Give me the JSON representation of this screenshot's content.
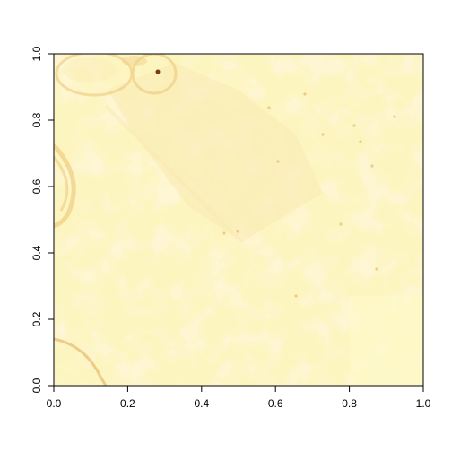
{
  "chart_data": {
    "type": "heatmap",
    "title": "",
    "xlabel": "",
    "ylabel": "",
    "xlim": [
      0,
      1
    ],
    "ylim": [
      0,
      1
    ],
    "x_ticks": [
      "0.0",
      "0.2",
      "0.4",
      "0.6",
      "0.8",
      "1.0"
    ],
    "y_ticks": [
      "0.0",
      "0.2",
      "0.4",
      "0.6",
      "0.8",
      "1.0"
    ],
    "grid": false,
    "legend": "none",
    "colors": {
      "base": "#fdf5c0",
      "light": "#fefac8",
      "mid": "#f9eab2",
      "dark": "#f1d28a",
      "accent": "#e8b970",
      "spot": "#7a3b10"
    }
  }
}
